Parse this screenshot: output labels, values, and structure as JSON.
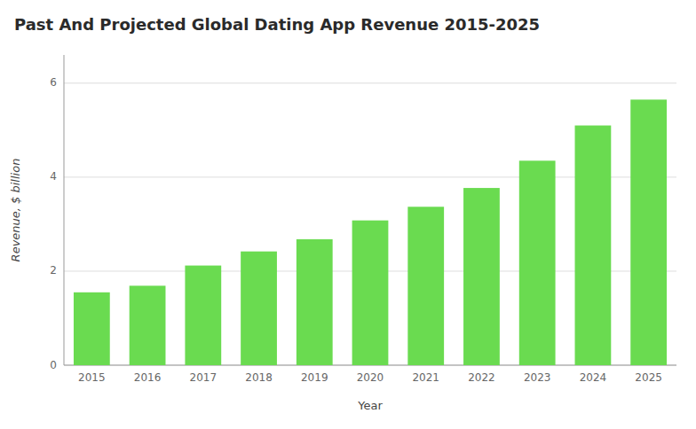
{
  "chart_data": {
    "type": "bar",
    "title": "Past And Projected Global Dating App Revenue 2015-2025",
    "xlabel": "Year",
    "ylabel": "Revenue, $ billion",
    "categories": [
      "2015",
      "2016",
      "2017",
      "2018",
      "2019",
      "2020",
      "2021",
      "2022",
      "2023",
      "2024",
      "2025"
    ],
    "values": [
      1.55,
      1.69,
      2.12,
      2.42,
      2.68,
      3.08,
      3.37,
      3.77,
      4.35,
      5.1,
      5.65
    ],
    "color": "#6adb50",
    "ylim": [
      0,
      6.6
    ],
    "yticks": [
      0,
      2,
      4,
      6
    ],
    "grid": true
  }
}
